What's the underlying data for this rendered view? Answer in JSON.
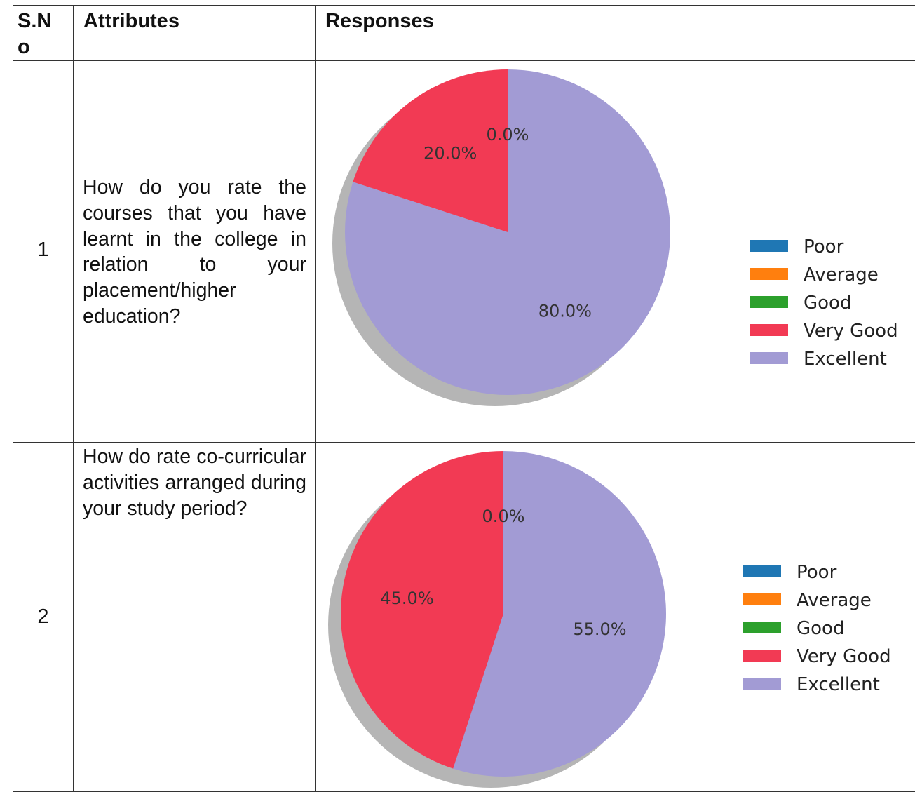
{
  "header": {
    "sno": "S.N o",
    "attributes": "Attributes",
    "responses": "Responses"
  },
  "rows": [
    {
      "sno": "1",
      "question": "How do you rate the courses that you have learnt in the college in relation to your placement/higher education?"
    },
    {
      "sno": "2",
      "question": "How do rate co-curricular activities arranged during your study period?"
    }
  ],
  "legend": [
    "Poor",
    "Average",
    "Good",
    "Very Good",
    "Excellent"
  ],
  "colors": {
    "Poor": "#1f77b4",
    "Average": "#ff7f0e",
    "Good": "#2ca02c",
    "Very Good": "#f23a54",
    "Excellent": "#a29bd4",
    "shadow": "#b5b5b5"
  },
  "chart_data": [
    {
      "type": "pie",
      "categories": [
        "Poor",
        "Average",
        "Good",
        "Very Good",
        "Excellent"
      ],
      "values": [
        0.0,
        0.0,
        0.0,
        20.0,
        80.0
      ],
      "labels": [
        "0.0%",
        "20.0%",
        "80.0%"
      ],
      "legend_position": "right"
    },
    {
      "type": "pie",
      "categories": [
        "Poor",
        "Average",
        "Good",
        "Very Good",
        "Excellent"
      ],
      "values": [
        0.0,
        0.0,
        0.0,
        45.0,
        55.0
      ],
      "labels": [
        "0.0%",
        "45.0%",
        "55.0%"
      ],
      "legend_position": "right"
    }
  ]
}
